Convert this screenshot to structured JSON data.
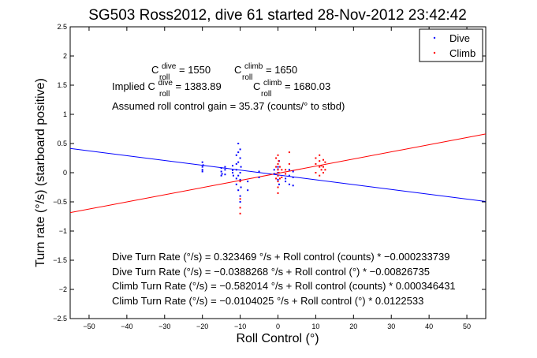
{
  "chart_data": {
    "type": "scatter",
    "title": "SG503 Ross2012, dive 61 started 28-Nov-2012 23:42:42",
    "xlabel": "Roll Control (°)",
    "ylabel": "Turn rate (°/s) (starboard positive)",
    "xlim": [
      -55,
      55
    ],
    "ylim": [
      -2.5,
      2.5
    ],
    "x_ticks": [
      -50,
      -40,
      -30,
      -20,
      -10,
      0,
      10,
      20,
      30,
      40,
      50
    ],
    "y_ticks": [
      -2.5,
      -2,
      -1.5,
      -1,
      -0.5,
      0,
      0.5,
      1,
      1.5,
      2,
      2.5
    ],
    "grid": false,
    "legend_placement": "top-right",
    "colors": {
      "dive": "#0000ff",
      "climb": "#ff0000"
    },
    "series": [
      {
        "name": "Dive",
        "color": "#0000ff",
        "marker": "dot",
        "points": [
          [
            -20,
            0.05
          ],
          [
            -20,
            0.1
          ],
          [
            -20,
            0.18
          ],
          [
            -20,
            0.02
          ],
          [
            -19.8,
            0.13
          ],
          [
            -15,
            -0.05
          ],
          [
            -15,
            0.02
          ],
          [
            -15,
            0.08
          ],
          [
            -14.8,
            -0.02
          ],
          [
            -14,
            0.05
          ],
          [
            -14,
            -0.03
          ],
          [
            -14,
            0.1
          ],
          [
            -12,
            0.12
          ],
          [
            -12,
            0.0
          ],
          [
            -12,
            0.04
          ],
          [
            -11.8,
            -0.05
          ],
          [
            -11,
            0.05
          ],
          [
            -11,
            0.15
          ],
          [
            -11,
            -0.1
          ],
          [
            -11,
            0.3
          ],
          [
            -11,
            -0.2
          ],
          [
            -10.5,
            0.5
          ],
          [
            -10.5,
            0.35
          ],
          [
            -10.5,
            0.18
          ],
          [
            -10.5,
            -0.05
          ],
          [
            -10.5,
            -0.3
          ],
          [
            -10,
            0.4
          ],
          [
            -10,
            0.25
          ],
          [
            -10,
            0.0
          ],
          [
            -10,
            -0.12
          ],
          [
            -10,
            -0.5
          ],
          [
            -10,
            -0.4
          ],
          [
            -9.8,
            0.1
          ],
          [
            -9.8,
            -0.25
          ],
          [
            -8,
            -0.15
          ],
          [
            -8,
            -0.3
          ],
          [
            -5,
            0.02
          ],
          [
            -5,
            -0.08
          ],
          [
            -1,
            0.05
          ],
          [
            -1,
            -0.02
          ],
          [
            0,
            0.1
          ],
          [
            0,
            0.0
          ],
          [
            0,
            -0.12
          ],
          [
            0,
            -0.05
          ],
          [
            0,
            0.06
          ],
          [
            0.3,
            -0.2
          ],
          [
            0.3,
            0.2
          ],
          [
            2,
            -0.1
          ],
          [
            2,
            -0.15
          ],
          [
            3,
            0.05
          ],
          [
            3,
            -0.05
          ],
          [
            3,
            -0.2
          ],
          [
            4,
            0.02
          ],
          [
            4,
            -0.08
          ],
          [
            4,
            -0.22
          ]
        ]
      },
      {
        "name": "Climb",
        "color": "#ff0000",
        "marker": "dot",
        "points": [
          [
            -10,
            -0.15
          ],
          [
            -10,
            -0.45
          ],
          [
            -10,
            -0.6
          ],
          [
            -10,
            -0.7
          ],
          [
            -0.5,
            0.1
          ],
          [
            -0.5,
            -0.1
          ],
          [
            -0.5,
            0.25
          ],
          [
            0,
            0.3
          ],
          [
            0,
            0.15
          ],
          [
            0,
            0.05
          ],
          [
            0,
            -0.05
          ],
          [
            0,
            -0.15
          ],
          [
            0,
            -0.25
          ],
          [
            0,
            -0.35
          ],
          [
            0.2,
            0.0
          ],
          [
            0.2,
            0.2
          ],
          [
            0.5,
            -0.1
          ],
          [
            0.5,
            0.1
          ],
          [
            1,
            0.05
          ],
          [
            1,
            -0.08
          ],
          [
            2,
            -0.02
          ],
          [
            2,
            0.05
          ],
          [
            3,
            0.35
          ],
          [
            3,
            0.15
          ],
          [
            10,
            0.0
          ],
          [
            10,
            0.15
          ],
          [
            10,
            0.25
          ],
          [
            11,
            0.1
          ],
          [
            11,
            -0.05
          ],
          [
            11,
            0.3
          ],
          [
            11,
            0.2
          ],
          [
            11.5,
            0.12
          ],
          [
            11.5,
            0.05
          ],
          [
            12,
            0.0
          ],
          [
            12,
            0.1
          ],
          [
            12,
            0.22
          ],
          [
            12.5,
            0.18
          ],
          [
            12.5,
            0.05
          ]
        ]
      }
    ],
    "fit_lines": [
      {
        "series": "Dive",
        "color": "#0000ff",
        "intercept": -0.0388268,
        "slope": -0.00826735
      },
      {
        "series": "Climb",
        "color": "#ff0000",
        "intercept": -0.0104025,
        "slope": 0.0122533
      }
    ],
    "annotations": {
      "c_roll_dive_pre": "C",
      "c_roll_dive_sup": "dive",
      "c_roll_dive_sub": "roll",
      "c_roll_dive_val": " = 1550",
      "c_roll_climb_pre": "C",
      "c_roll_climb_sup": "climb",
      "c_roll_climb_sub": "roll",
      "c_roll_climb_val": " = 1650",
      "implied_label": "Implied C",
      "implied_dive_sup": "dive",
      "implied_dive_sub": "roll",
      "implied_dive_val": " = 1383.89",
      "implied_climb_pre": "C",
      "implied_climb_sup": "climb",
      "implied_climb_sub": "roll",
      "implied_climb_val": " = 1680.03",
      "gain": "Assumed roll control gain = 35.37 (counts/° to stbd)",
      "fit1": "Dive Turn Rate (°/s) = 0.323469 °/s + Roll control (counts) * −0.000233739",
      "fit2": "Dive Turn Rate (°/s) = −0.0388268 °/s + Roll control (°) * −0.00826735",
      "fit3": "Climb Turn Rate (°/s) = −0.582014 °/s + Roll control (counts) * 0.000346431",
      "fit4": "Climb Turn Rate (°/s) = −0.0104025 °/s + Roll control (°) * 0.0122533"
    }
  }
}
